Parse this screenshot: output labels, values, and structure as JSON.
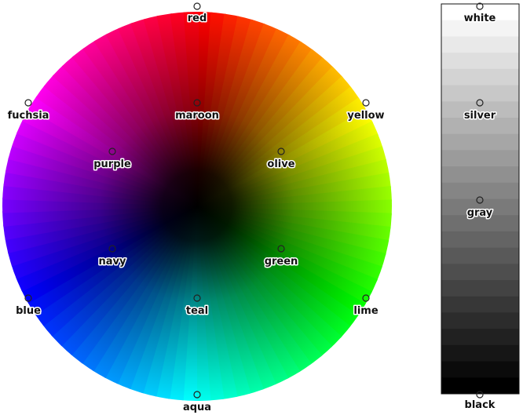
{
  "color_wheel": {
    "top_labels": [
      {
        "key": "red",
        "text": "red",
        "color": "#ff0000"
      },
      {
        "key": "fuchsia",
        "text": "fuchsia",
        "color": "#ff00ff"
      },
      {
        "key": "yellow",
        "text": "yellow",
        "color": "#ffff00"
      },
      {
        "key": "maroon",
        "text": "maroon",
        "color": "#800000"
      },
      {
        "key": "purple",
        "text": "purple",
        "color": "#800080"
      },
      {
        "key": "olive",
        "text": "olive",
        "color": "#808000"
      },
      {
        "key": "navy",
        "text": "navy",
        "color": "#000080"
      },
      {
        "key": "green",
        "text": "green",
        "color": "#008000"
      },
      {
        "key": "blue",
        "text": "blue",
        "color": "#0000ff"
      },
      {
        "key": "teal",
        "text": "teal",
        "color": "#008080"
      },
      {
        "key": "lime",
        "text": "lime",
        "color": "#00ff00"
      },
      {
        "key": "aqua",
        "text": "aqua",
        "color": "#00ffff"
      }
    ]
  },
  "gray_scale": {
    "labels": [
      {
        "key": "white",
        "text": "white",
        "color": "#ffffff"
      },
      {
        "key": "silver",
        "text": "silver",
        "color": "#c0c0c0"
      },
      {
        "key": "gray",
        "text": "gray",
        "color": "#808080"
      },
      {
        "key": "black",
        "text": "black",
        "color": "#000000"
      }
    ]
  }
}
